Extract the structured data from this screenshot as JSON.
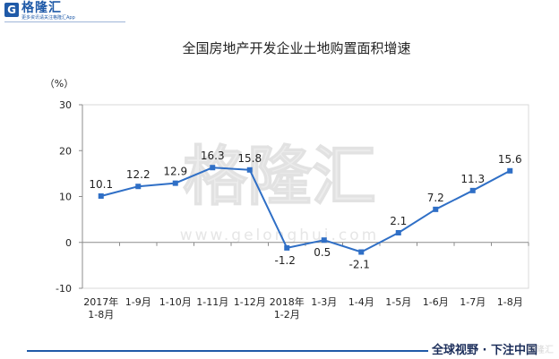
{
  "brand": {
    "logo_letter": "G",
    "name": "格隆汇",
    "tagline": "更多资讯请关注格隆汇App"
  },
  "watermark": {
    "name": "格隆汇",
    "url": "www.gelonghui.com",
    "corner": "格隆汇"
  },
  "footer": {
    "slogan": "全球视野 · 下注中国"
  },
  "colors": {
    "brand_blue": "#1f5aa8",
    "line": "#2f6fc6",
    "marker": "#2f6fc6",
    "axis": "#8c8c8c",
    "frame": "#d9d9d9",
    "watermark": "#ececec"
  },
  "chart_data": {
    "type": "line",
    "title": "全国房地产开发企业土地购置面积增速",
    "xlabel": "",
    "ylabel": "（%）",
    "categories": [
      "2017年\n1-8月",
      "1-9月",
      "1-10月",
      "1-11月",
      "1-12月",
      "2018年\n1-2月",
      "1-3月",
      "1-4月",
      "1-5月",
      "1-6月",
      "1-7月",
      "1-8月"
    ],
    "series": [
      {
        "values": [
          10.1,
          12.2,
          12.9,
          16.3,
          15.8,
          -1.2,
          0.5,
          -2.1,
          2.1,
          7.2,
          11.3,
          15.6
        ]
      }
    ],
    "ylim": [
      -10,
      30
    ],
    "yticks": [
      30,
      20,
      10,
      0,
      -10
    ],
    "grid": false,
    "legend": "none",
    "data_labels": true,
    "markers": "square"
  }
}
